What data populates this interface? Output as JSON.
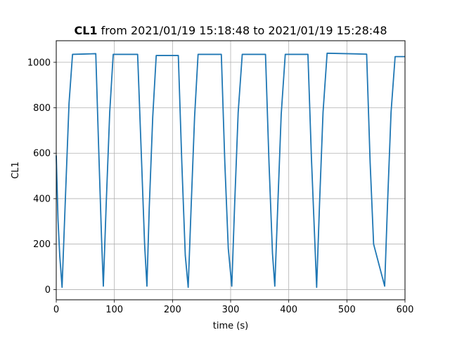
{
  "chart_data": {
    "type": "line",
    "title_bold": "CL1",
    "title_rest": " from 2021/01/19 15:18:48 to 2021/01/19 15:28:48",
    "xlabel": "time (s)",
    "ylabel": "CL1",
    "xlim": [
      0,
      600
    ],
    "ylim": [
      -45,
      1095
    ],
    "xticks": [
      0,
      100,
      200,
      300,
      400,
      500,
      600
    ],
    "yticks": [
      0,
      200,
      400,
      600,
      800,
      1000
    ],
    "grid": true,
    "legend": "none",
    "series": [
      {
        "color": "#1f77b4",
        "x": [
          0,
          3,
          6,
          10,
          16,
          22,
          28,
          68,
          73,
          78,
          81,
          86,
          92,
          98,
          140,
          146,
          152,
          156,
          160,
          166,
          172,
          210,
          216,
          222,
          227,
          232,
          238,
          244,
          284,
          290,
          296,
          302,
          307,
          313,
          320,
          360,
          366,
          372,
          376,
          381,
          387,
          394,
          433,
          439,
          445,
          448,
          453,
          459,
          466,
          534,
          540,
          546,
          565,
          570,
          576,
          583,
          600
        ],
        "y": [
          590,
          310,
          150,
          10,
          420,
          820,
          1035,
          1038,
          620,
          220,
          15,
          380,
          780,
          1035,
          1035,
          620,
          200,
          15,
          360,
          760,
          1030,
          1030,
          560,
          150,
          10,
          360,
          760,
          1035,
          1035,
          560,
          180,
          15,
          380,
          780,
          1035,
          1035,
          560,
          160,
          15,
          360,
          770,
          1035,
          1035,
          580,
          200,
          10,
          380,
          780,
          1040,
          1036,
          560,
          200,
          15,
          380,
          780,
          1025,
          1025
        ]
      }
    ]
  }
}
